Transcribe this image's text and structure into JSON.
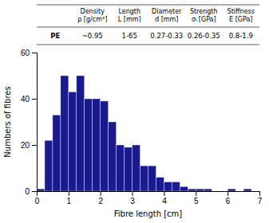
{
  "chart_data": {
    "type": "histogram",
    "xlabel": "Fibre length [cm]",
    "ylabel": "Numbers of fibres",
    "bins": [
      0,
      0.25,
      0.5,
      0.75,
      1,
      1.25,
      1.5,
      1.75,
      2,
      2.25,
      2.5,
      2.75,
      3,
      3.25,
      3.5,
      3.75,
      4,
      4.25,
      4.5,
      4.75,
      5,
      5.25,
      5.5,
      5.75,
      6,
      6.25,
      6.5,
      6.75
    ],
    "values": [
      1,
      22,
      33,
      50,
      43,
      50,
      40,
      40,
      39,
      30,
      20,
      19,
      20,
      11,
      11,
      6,
      4,
      4,
      2,
      1,
      1,
      1,
      0,
      0,
      1,
      0,
      1
    ],
    "color": "#1a1a8c",
    "xlim": [
      0,
      7
    ],
    "ylim": [
      0,
      60
    ],
    "xticks": [
      0,
      1,
      2,
      3,
      4,
      5,
      6,
      7
    ],
    "yticks": [
      0,
      20,
      40,
      60
    ],
    "grid": false,
    "table": {
      "columns": [
        "Density\nρ [g/cm³]",
        "Length\nL [mm]",
        "Diameter\nd [mm]",
        "Strength\nσₗ [GPa]",
        "Stiffness\nE [GPa]"
      ],
      "row_label": "PE",
      "values": [
        "~0.95",
        "1-65",
        "0.27-0.33",
        "0.26-0.35",
        "0.8-1.9"
      ]
    }
  }
}
